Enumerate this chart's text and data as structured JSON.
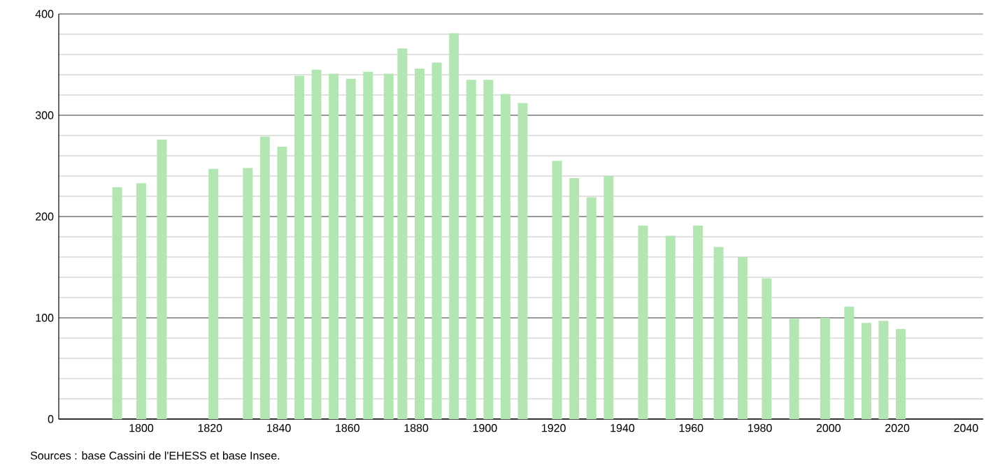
{
  "chart_data": {
    "type": "bar",
    "x": [
      1793,
      1800,
      1806,
      1821,
      1831,
      1836,
      1841,
      1846,
      1851,
      1856,
      1861,
      1866,
      1872,
      1876,
      1881,
      1886,
      1891,
      1896,
      1901,
      1906,
      1911,
      1921,
      1926,
      1931,
      1936,
      1946,
      1954,
      1962,
      1968,
      1975,
      1982,
      1990,
      1999,
      2006,
      2011,
      2016,
      2021
    ],
    "values": [
      229,
      233,
      276,
      247,
      248,
      279,
      269,
      339,
      345,
      341,
      336,
      343,
      341,
      366,
      346,
      352,
      381,
      335,
      335,
      321,
      312,
      255,
      238,
      219,
      240,
      191,
      181,
      191,
      170,
      160,
      139,
      99,
      100,
      111,
      95,
      97,
      89
    ],
    "color": "#b3e6b3",
    "xlim": [
      1776,
      2045
    ],
    "ylim": [
      0,
      400
    ],
    "xticks": [
      1800,
      1820,
      1840,
      1860,
      1880,
      1900,
      1920,
      1940,
      1960,
      1980,
      2000,
      2020,
      2040
    ],
    "yticks": [
      0,
      100,
      200,
      300,
      400
    ],
    "grid": "y",
    "annotations": [
      "Sources : base Cassini de l'EHESS et base Insee."
    ]
  }
}
